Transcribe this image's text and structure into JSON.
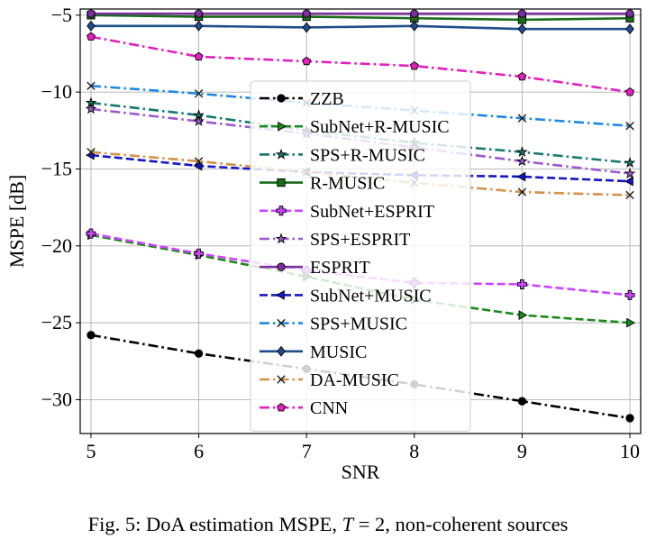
{
  "caption": {
    "prefix": "Fig. 5: DoA estimation MSPE, ",
    "variable": "T",
    "suffix": " = 2, non-coherent sources"
  },
  "chart_data": {
    "type": "line",
    "xlabel": "SNR",
    "ylabel": "MSPE [dB]",
    "x": [
      5,
      6,
      7,
      8,
      9,
      10
    ],
    "xlim": [
      4.9,
      10.1
    ],
    "ylim": [
      -32.2,
      -4.6
    ],
    "xticks": [
      5,
      6,
      7,
      8,
      9,
      10
    ],
    "yticks": [
      -30,
      -25,
      -20,
      -15,
      -10,
      -5
    ],
    "grid": true,
    "legend_position": "center",
    "series": [
      {
        "name": "ZZB",
        "color": "#000000",
        "dash": "dashdot",
        "marker": "circle",
        "values": [
          -25.8,
          -27.0,
          -28.0,
          -29.0,
          -30.1,
          -31.2
        ]
      },
      {
        "name": "SubNet+R-MUSIC",
        "color": "#1a8a1a",
        "dash": "dashed",
        "marker": "triangle-right",
        "values": [
          -19.3,
          -20.6,
          -22.0,
          -23.5,
          -24.5,
          -25.0
        ]
      },
      {
        "name": "SPS+R-MUSIC",
        "color": "#17796e",
        "dash": "dashdot",
        "marker": "star",
        "values": [
          -10.7,
          -11.5,
          -12.5,
          -13.3,
          -13.9,
          -14.6
        ]
      },
      {
        "name": "R-MUSIC",
        "color": "#1a6b1a",
        "dash": "solid",
        "marker": "square",
        "values": [
          -5.0,
          -5.1,
          -5.1,
          -5.2,
          -5.3,
          -5.2
        ]
      },
      {
        "name": "SubNet+ESPRIT",
        "color": "#cc44ff",
        "dash": "dashed",
        "marker": "plus",
        "values": [
          -19.2,
          -20.5,
          -21.6,
          -22.4,
          -22.5,
          -23.2
        ]
      },
      {
        "name": "SPS+ESPRIT",
        "color": "#9b59d0",
        "dash": "dashdot",
        "marker": "star",
        "values": [
          -11.1,
          -11.9,
          -12.7,
          -13.6,
          -14.5,
          -15.3
        ]
      },
      {
        "name": "ESPRIT",
        "color": "#7b2e9e",
        "dash": "solid",
        "marker": "circle",
        "values": [
          -4.9,
          -4.9,
          -4.9,
          -4.9,
          -4.9,
          -4.9
        ]
      },
      {
        "name": "SubNet+MUSIC",
        "color": "#1515c8",
        "dash": "dashed",
        "marker": "triangle-left",
        "values": [
          -14.1,
          -14.8,
          -15.2,
          -15.4,
          -15.5,
          -15.8
        ]
      },
      {
        "name": "SPS+MUSIC",
        "color": "#1e88e5",
        "dash": "dashdot",
        "marker": "x",
        "values": [
          -9.6,
          -10.1,
          -10.7,
          -11.2,
          -11.7,
          -12.2
        ]
      },
      {
        "name": "MUSIC",
        "color": "#1f4e8c",
        "dash": "solid",
        "marker": "diamond",
        "values": [
          -5.7,
          -5.7,
          -5.8,
          -5.7,
          -5.9,
          -5.9
        ]
      },
      {
        "name": "DA-MUSIC",
        "color": "#d4924a",
        "dash": "dashdot",
        "marker": "x",
        "values": [
          -13.9,
          -14.5,
          -15.2,
          -15.9,
          -16.5,
          -16.7
        ]
      },
      {
        "name": "CNN",
        "color": "#e31fc0",
        "dash": "dashdot",
        "marker": "pentagon",
        "values": [
          -6.4,
          -7.7,
          -8.0,
          -8.3,
          -9.0,
          -10.0
        ]
      }
    ]
  }
}
